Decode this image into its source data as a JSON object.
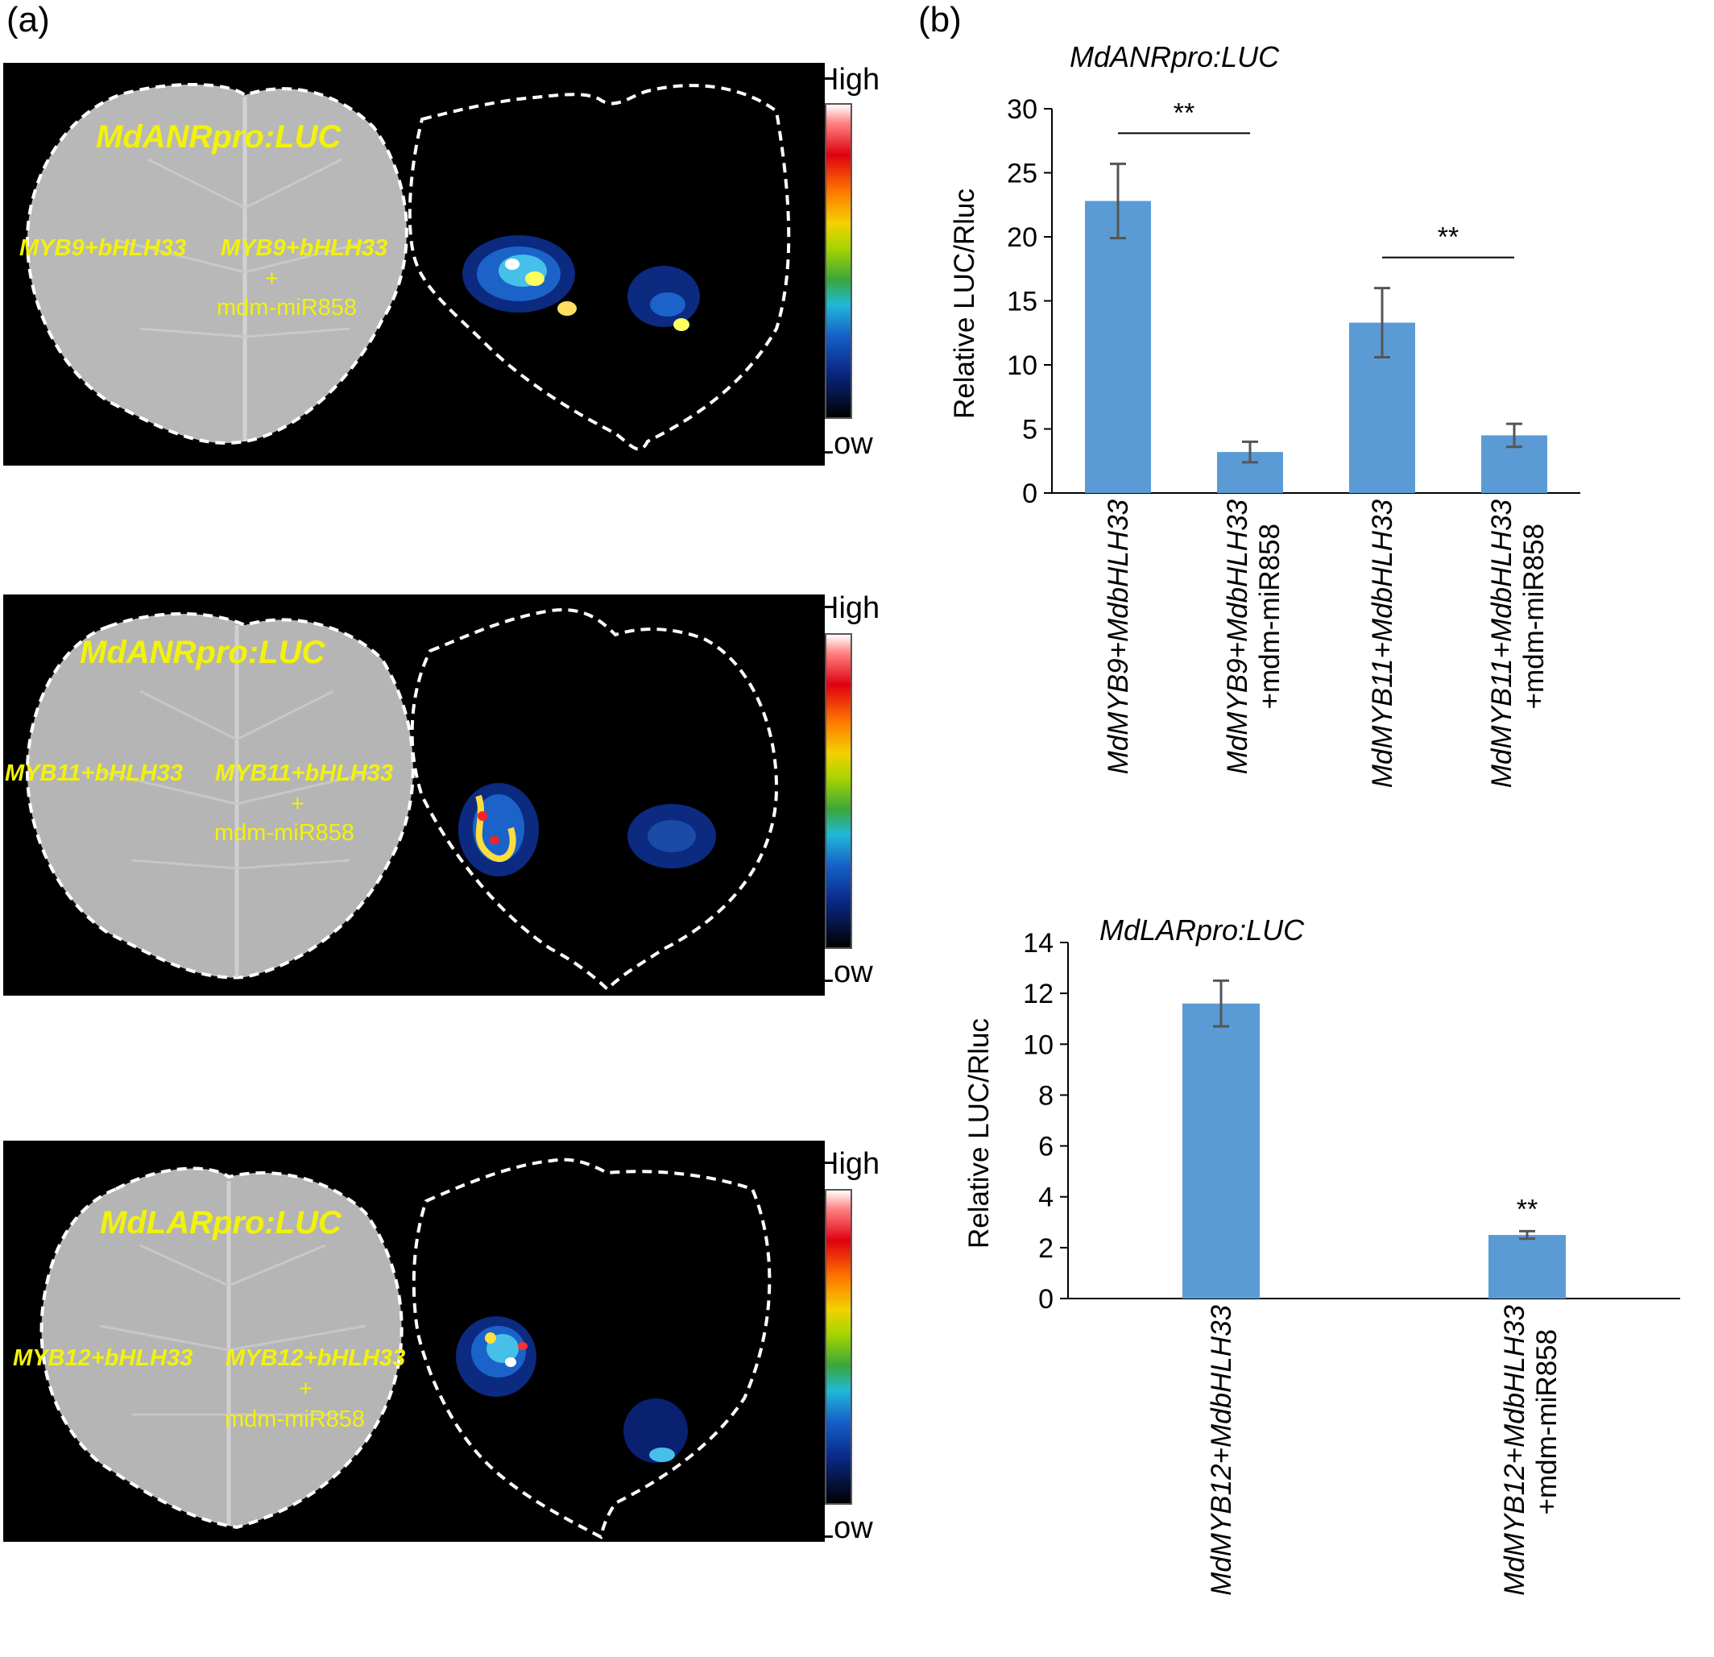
{
  "panel_a": {
    "letter": "(a)",
    "scale": {
      "high": "High",
      "low": "Low"
    },
    "images": [
      {
        "title": "MdANRpro:LUC",
        "left_label": "MYB9+bHLH33",
        "right_label": "MYB9+bHLH33",
        "plus": "+",
        "mirna": "mdm-miR858"
      },
      {
        "title": "MdANRpro:LUC",
        "left_label": "MYB11+bHLH33",
        "right_label": "MYB11+bHLH33",
        "plus": "+",
        "mirna": "mdm-miR858"
      },
      {
        "title": "MdLARpro:LUC",
        "left_label": "MYB12+bHLH33",
        "right_label": "MYB12+bHLH33",
        "plus": "+",
        "mirna": "mdm-miR858"
      }
    ]
  },
  "panel_b": {
    "letter": "(b)",
    "colors": {
      "bar": "#5b9bd5",
      "error": "#555555"
    }
  },
  "chart_data": [
    {
      "type": "bar",
      "title": "MdANRpro:LUC",
      "ylabel": "Relative LUC/Rluc",
      "ylim": [
        0,
        30
      ],
      "yticks": [
        0,
        5,
        10,
        15,
        20,
        25,
        30
      ],
      "categories": [
        {
          "line1": "MdMYB9+MdbHLH33",
          "line2": ""
        },
        {
          "line1": "MdMYB9+MdbHLH33",
          "line2": "+mdm-miR858"
        },
        {
          "line1": "MdMYB11+MdbHLH33",
          "line2": ""
        },
        {
          "line1": "MdMYB11+MdbHLH33",
          "line2": "+mdm-miR858"
        }
      ],
      "values": [
        22.8,
        3.2,
        13.3,
        4.5
      ],
      "errors": [
        2.9,
        0.8,
        2.7,
        0.9
      ],
      "significance": [
        {
          "from": 0,
          "to": 1,
          "label": "**"
        },
        {
          "from": 2,
          "to": 3,
          "label": "**"
        }
      ]
    },
    {
      "type": "bar",
      "title": "MdLARpro:LUC",
      "ylabel": "Relative LUC/Rluc",
      "ylim": [
        0,
        14
      ],
      "yticks": [
        0,
        2,
        4,
        6,
        8,
        10,
        12,
        14
      ],
      "categories": [
        {
          "line1": "MdMYB12+MdbHLH33",
          "line2": ""
        },
        {
          "line1": "MdMYB12+MdbHLH33",
          "line2": "+mdm-miR858"
        }
      ],
      "values": [
        11.6,
        2.5
      ],
      "errors": [
        0.9,
        0.15
      ],
      "significance": [
        {
          "bar": 1,
          "label": "**"
        }
      ]
    }
  ]
}
